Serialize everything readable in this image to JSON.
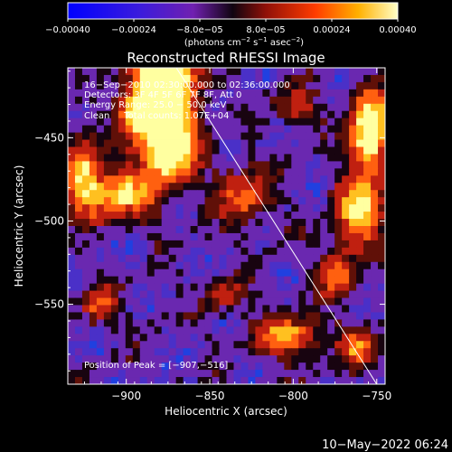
{
  "chart_data": {
    "type": "heatmap",
    "title": "Reconstructed RHESSI Image",
    "xlabel": "Heliocentric X (arcsec)",
    "ylabel": "Heliocentric Y (arcsec)",
    "xlim": [
      -935,
      -745
    ],
    "ylim": [
      -598,
      -408
    ],
    "x_ticks": [
      -900,
      -850,
      -800,
      -750
    ],
    "x_tick_labels": [
      "−900",
      "−850",
      "−800",
      "−750"
    ],
    "y_ticks": [
      -450,
      -500,
      -550
    ],
    "y_tick_labels": [
      "−450",
      "−500",
      "−550"
    ],
    "colorbar": {
      "range": [
        -0.0004,
        0.0004
      ],
      "ticks": [
        -0.0004,
        -0.00024,
        -8e-05,
        8e-05,
        0.00024,
        0.0004
      ],
      "tick_labels": [
        "−0.00040",
        "−0.00024",
        "−8.0e−05",
        "8.0e−05",
        "0.00024",
        "0.00040"
      ],
      "label_main": "(photons cm",
      "label_exp1": "−2",
      "label_mid1": " s",
      "label_exp2": "−1",
      "label_mid2": " asec",
      "label_exp3": "−2",
      "label_end": ")"
    },
    "annotations": {
      "line1": "16−Sep−2010 02:30:00.000 to 02:36:00.000",
      "line2": "Detectors: 3F 4F 5F 6F 7F 8F, Att 0",
      "line3": "Energy Range: 25.0 − 50.0 keV",
      "line4": "Clean     Total counts: 1.07E+04",
      "peak": "Position of Peak = [−907,−516]"
    },
    "limb_line": {
      "x": [
        -870,
        -750
      ],
      "y": [
        -408,
        -598
      ]
    },
    "timestamp": "10−May−2022 06:24",
    "colors": {
      "background": "#000000",
      "axis": "#ffffff",
      "text": "#ffffff"
    }
  }
}
